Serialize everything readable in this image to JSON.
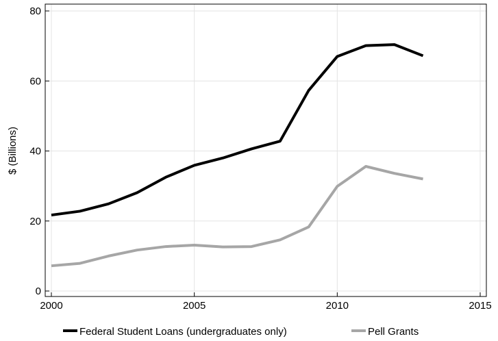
{
  "chart_data": {
    "type": "line",
    "title": "",
    "xlabel": "",
    "ylabel": "$ (Billions)",
    "xlim": [
      2000,
      2015
    ],
    "ylim": [
      0,
      80
    ],
    "xticks": [
      2000,
      2005,
      2010,
      2015
    ],
    "yticks": [
      0,
      20,
      40,
      60,
      80
    ],
    "grid": true,
    "legend_position": "bottom",
    "x": [
      2000,
      2001,
      2002,
      2003,
      2004,
      2005,
      2006,
      2007,
      2008,
      2009,
      2010,
      2011,
      2012,
      2013
    ],
    "series": [
      {
        "name": "Federal Student Loans (undergraduates only)",
        "color": "#000000",
        "values": [
          21.7,
          22.8,
          24.9,
          28.1,
          32.5,
          35.9,
          38.0,
          40.6,
          42.8,
          57.3,
          67.0,
          70.1,
          70.4,
          67.2
        ]
      },
      {
        "name": "Pell Grants",
        "color": "#a6a6a6",
        "values": [
          7.2,
          7.9,
          10.0,
          11.7,
          12.7,
          13.1,
          12.6,
          12.7,
          14.6,
          18.3,
          29.9,
          35.6,
          33.6,
          32.0
        ]
      }
    ]
  }
}
